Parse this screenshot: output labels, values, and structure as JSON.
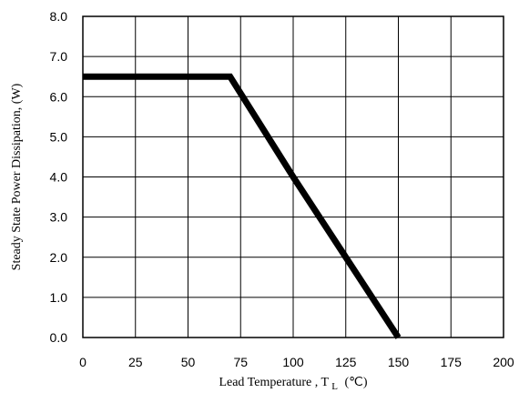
{
  "chart_data": {
    "type": "line",
    "title": "",
    "xlabel": "Lead Temperature , T",
    "xlabel_subscript": "L",
    "xlabel_unit": "(℃)",
    "ylabel": "Steady State Power Dissipation, (W)",
    "xlim": [
      0,
      200
    ],
    "ylim": [
      0,
      8
    ],
    "grid": true,
    "x_ticks": [
      "0",
      "25",
      "50",
      "75",
      "100",
      "125",
      "150",
      "175",
      "200"
    ],
    "y_ticks": [
      "0.0",
      "1.0",
      "2.0",
      "3.0",
      "4.0",
      "5.0",
      "6.0",
      "7.0",
      "8.0"
    ],
    "series": [
      {
        "x": [
          0,
          70,
          100,
          150
        ],
        "y": [
          6.5,
          6.5,
          4.0,
          0.0
        ],
        "color": "#000000"
      }
    ]
  }
}
